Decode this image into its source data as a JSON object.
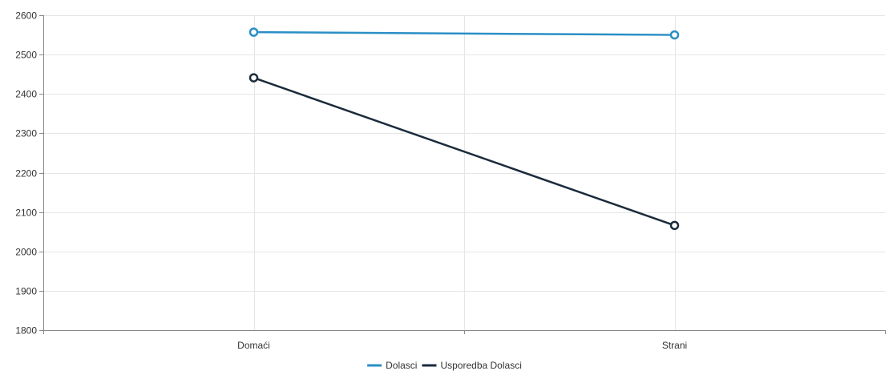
{
  "chart_data": {
    "type": "line",
    "categories": [
      "Domaći",
      "Strani"
    ],
    "series": [
      {
        "name": "Dolasci",
        "values": [
          2557,
          2550
        ],
        "color": "#2a8fc6"
      },
      {
        "name": "Usporedba Dolasci",
        "values": [
          2441,
          2066
        ],
        "color": "#1b2b3c"
      }
    ],
    "title": "",
    "xlabel": "",
    "ylabel": "",
    "ylim": [
      1800,
      2600
    ],
    "yticks": [
      "1800",
      "1900",
      "2000",
      "2100",
      "2200",
      "2300",
      "2400",
      "2500",
      "2600"
    ],
    "grid": true,
    "legend_position": "bottom"
  }
}
